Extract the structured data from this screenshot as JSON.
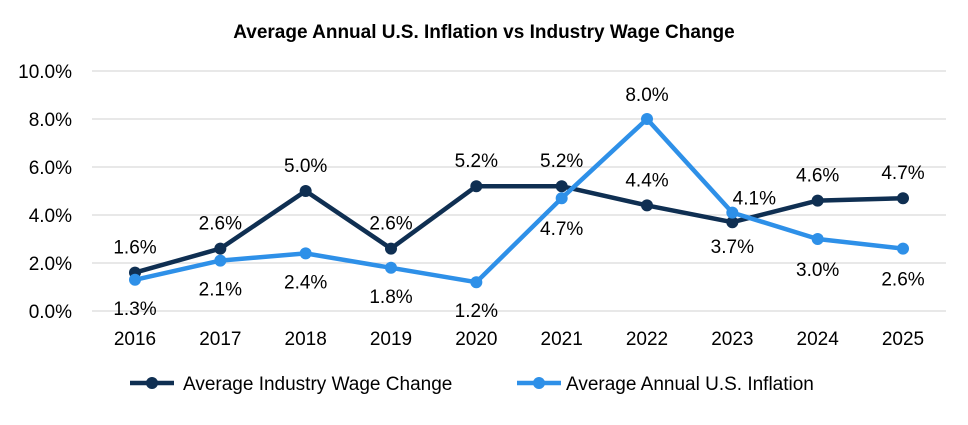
{
  "chart_data": {
    "type": "line",
    "title": "Average Annual U.S. Inflation vs Industry Wage Change",
    "xlabel": "",
    "ylabel": "",
    "categories": [
      "2016",
      "2017",
      "2018",
      "2019",
      "2020",
      "2021",
      "2022",
      "2023",
      "2024",
      "2025"
    ],
    "ylim": [
      0,
      10
    ],
    "yticks": [
      "0.0%",
      "2.0%",
      "4.0%",
      "6.0%",
      "8.0%",
      "10.0%"
    ],
    "grid": true,
    "legend_position": "bottom",
    "series": [
      {
        "name": "Average Industry Wage Change",
        "color": "#0F2F52",
        "values": [
          1.6,
          2.6,
          5.0,
          2.6,
          5.2,
          5.2,
          4.4,
          3.7,
          4.6,
          4.7
        ],
        "labels": [
          "1.6%",
          "2.6%",
          "5.0%",
          "2.6%",
          "5.2%",
          "5.2%",
          "4.4%",
          "3.7%",
          "4.6%",
          "4.7%"
        ]
      },
      {
        "name": "Average Annual U.S. Inflation",
        "color": "#2E90E8",
        "values": [
          1.3,
          2.1,
          2.4,
          1.8,
          1.2,
          4.7,
          8.0,
          4.1,
          3.0,
          2.6
        ],
        "labels": [
          "1.3%",
          "2.1%",
          "2.4%",
          "1.8%",
          "1.2%",
          "4.7%",
          "8.0%",
          "4.1%",
          "3.0%",
          "2.6%"
        ]
      }
    ]
  }
}
